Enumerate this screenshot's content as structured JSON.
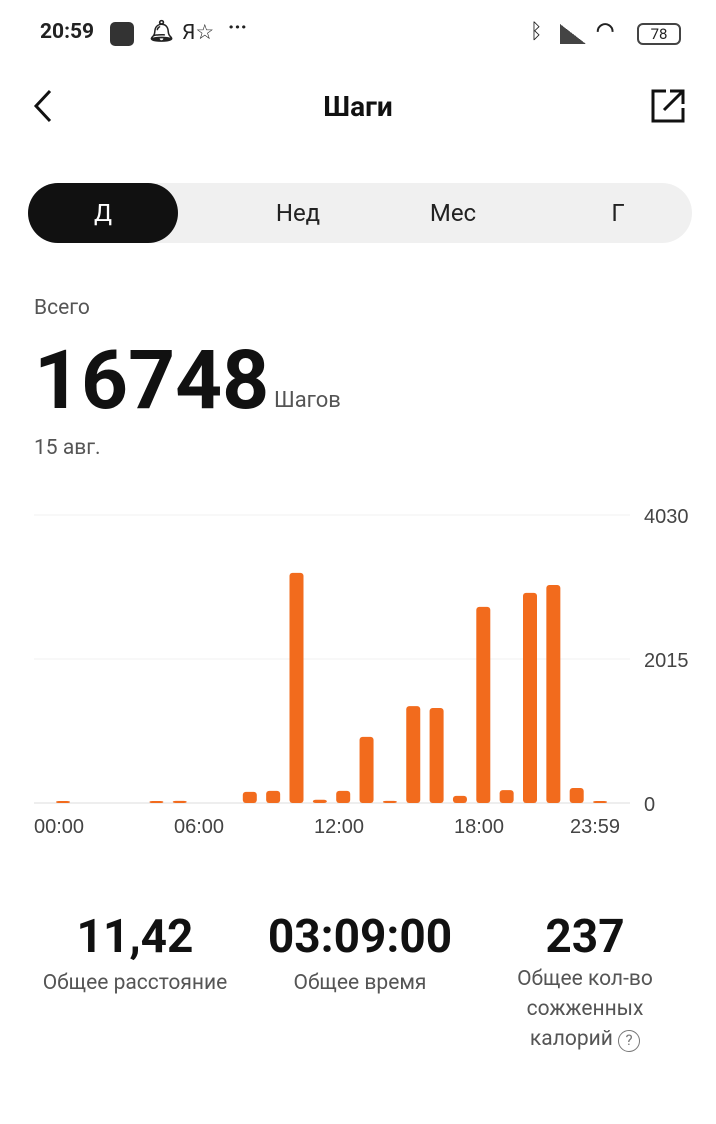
{
  "status_bar": {
    "time": "20:59",
    "battery": "78"
  },
  "header": {
    "title": "Шаги"
  },
  "tabs": [
    {
      "label": "Д",
      "active": true
    },
    {
      "label": "Нед"
    },
    {
      "label": "Мес"
    },
    {
      "label": "Г"
    }
  ],
  "summary": {
    "label": "Всего",
    "value": "16748",
    "unit": "Шагов",
    "date": "15 авг."
  },
  "accent_color": "#f26b1d",
  "chart_data": {
    "type": "bar",
    "x": [
      0,
      1,
      2,
      3,
      4,
      5,
      6,
      7,
      8,
      9,
      10,
      11,
      12,
      13,
      14,
      15,
      16,
      17,
      18,
      19,
      20,
      21,
      22,
      23
    ],
    "values": [
      15,
      0,
      0,
      0,
      10,
      30,
      0,
      0,
      155,
      170,
      3220,
      45,
      170,
      925,
      30,
      1355,
      1330,
      100,
      2745,
      180,
      2940,
      3050,
      210,
      10
    ],
    "xticks": [
      "00:00",
      "06:00",
      "12:00",
      "18:00",
      "23:59"
    ],
    "yticks": [
      "4030",
      "2015",
      "0"
    ],
    "ylim": [
      0,
      4030
    ],
    "grid": true
  },
  "stats": [
    {
      "value": "11,42",
      "label": "Общее расстояние"
    },
    {
      "value": "03:09:00",
      "label": "Общее время"
    },
    {
      "value": "237",
      "label": "Общее кол-во сожженных калорий"
    }
  ]
}
